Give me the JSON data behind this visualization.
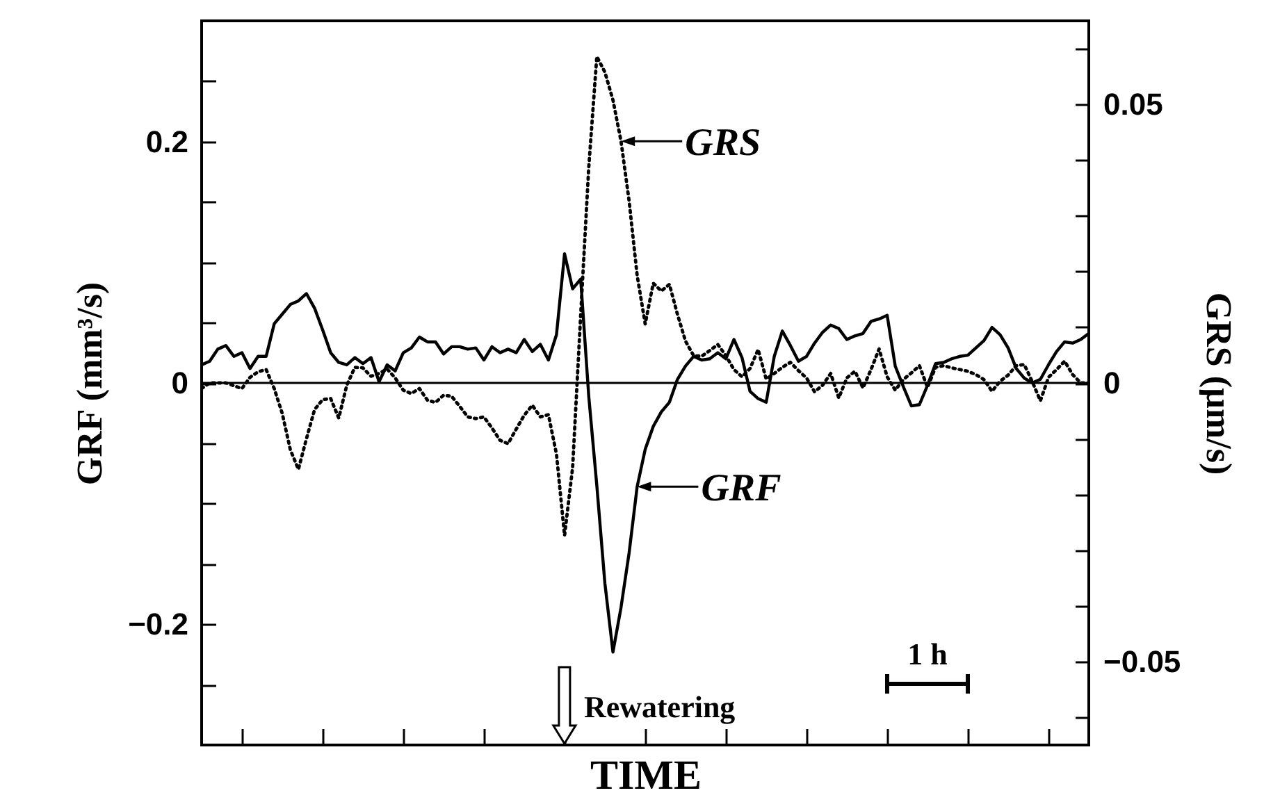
{
  "chart_data": {
    "type": "line",
    "xlabel": "TIME",
    "ylabel": "GRF (mm³/s)",
    "y2label": "GRS (µm/s)",
    "categories": [
      null,
      null,
      null,
      null,
      null,
      null,
      null,
      null,
      null,
      null,
      null,
      null,
      null,
      null,
      null,
      null,
      null,
      null,
      null,
      null,
      null,
      null,
      null,
      null,
      null,
      null,
      null,
      null,
      null,
      null,
      null,
      null,
      null,
      null,
      null,
      null,
      null,
      null,
      null,
      null,
      null,
      null,
      null,
      null,
      null,
      null,
      null,
      null,
      null,
      null,
      null,
      null,
      null,
      null,
      null,
      null,
      null,
      null,
      null,
      null,
      null,
      null,
      null,
      null,
      null,
      null,
      null,
      null,
      null,
      null,
      null,
      null,
      null,
      null,
      null,
      null,
      null,
      null,
      null,
      null,
      null,
      null,
      null,
      null,
      null,
      null,
      null,
      null,
      null,
      null,
      null,
      null,
      null,
      null,
      null,
      null,
      null,
      null,
      null,
      null,
      null,
      null,
      null,
      null,
      null,
      null,
      null,
      null,
      null,
      null,
      null
    ],
    "series": [
      {
        "color": "#000000",
        "line_style": "solid",
        "values": [
          0.015,
          0.018,
          0.028,
          0.031,
          0.022,
          0.025,
          0.012,
          0.022,
          0.022,
          0.049,
          0.057,
          0.065,
          0.068,
          0.074,
          0.062,
          0.044,
          0.025,
          0.017,
          0.015,
          0.021,
          0.016,
          0.021,
          0.001,
          0.015,
          0.01,
          0.025,
          0.029,
          0.038,
          0.034,
          0.034,
          0.024,
          0.03,
          0.03,
          0.028,
          0.029,
          0.019,
          0.03,
          0.025,
          0.028,
          0.025,
          0.036,
          0.026,
          0.032,
          0.019,
          0.04,
          0.107,
          0.078,
          0.086,
          -0.011,
          -0.085,
          -0.166,
          -0.223,
          -0.186,
          -0.141,
          -0.086,
          -0.055,
          -0.036,
          -0.024,
          -0.016,
          0.003,
          0.014,
          0.022,
          0.019,
          0.02,
          0.025,
          0.02,
          0.036,
          0.021,
          -0.007,
          -0.013,
          -0.016,
          0.022,
          0.043,
          0.031,
          0.018,
          0.022,
          0.033,
          0.042,
          0.048,
          0.045,
          0.036,
          0.039,
          0.041,
          0.051,
          0.053,
          0.056,
          0.014,
          -0.003,
          -0.019,
          -0.018,
          -0.002,
          0.016,
          0.017,
          0.02,
          0.022,
          0.023,
          0.029,
          0.035,
          0.046,
          0.04,
          0.029,
          0.012,
          0.004,
          0.0,
          0.003,
          0.015,
          0.026,
          0.034,
          0.033,
          0.036,
          0.041
        ]
      },
      {
        "color": "#000000",
        "line_style": "dotted",
        "axis": "y2",
        "values": [
          -0.001,
          0.0,
          0.0,
          0.0,
          -0.0005,
          -0.001,
          0.001,
          0.002,
          0.0024,
          -0.001,
          -0.0055,
          -0.012,
          -0.0155,
          -0.01,
          -0.0048,
          -0.003,
          -0.0028,
          -0.0063,
          -0.0004,
          0.0028,
          0.0027,
          0.0012,
          0.0017,
          0.0025,
          0.0009,
          -0.0013,
          -0.0019,
          -0.001,
          -0.0031,
          -0.0035,
          -0.0022,
          -0.0024,
          -0.0042,
          -0.0061,
          -0.0064,
          -0.0061,
          -0.0081,
          -0.0103,
          -0.0109,
          -0.0083,
          -0.0058,
          -0.004,
          -0.0061,
          -0.0057,
          -0.0128,
          -0.0274,
          -0.0152,
          0.0122,
          0.0387,
          0.0586,
          0.0558,
          0.0508,
          0.0434,
          0.0327,
          0.0193,
          0.0106,
          0.0179,
          0.0165,
          0.0177,
          0.0123,
          0.0075,
          0.0049,
          0.0048,
          0.0058,
          0.0069,
          0.0049,
          0.0024,
          0.0011,
          0.0026,
          0.006,
          0.0007,
          0.0017,
          0.0028,
          0.0037,
          0.0022,
          0.0009,
          -0.0016,
          -0.0004,
          0.0017,
          -0.0027,
          0.0009,
          0.0021,
          -0.0009,
          0.0024,
          0.0061,
          0.0011,
          -0.0013,
          0.0006,
          0.0018,
          0.0031,
          -0.0008,
          0.0028,
          0.0031,
          0.0027,
          0.0024,
          0.0021,
          0.0015,
          0.0006,
          -0.0015,
          0.0003,
          0.0014,
          0.0031,
          0.0033,
          0.0002,
          -0.0032,
          0.001,
          0.0024,
          0.0039,
          0.0015,
          0.0,
          0.0
        ]
      }
    ],
    "ylim": [
      -0.3,
      0.3
    ],
    "yticks": [
      {
        "value": -0.25,
        "label": null
      },
      {
        "value": -0.2,
        "label": "−0.2"
      },
      {
        "value": -0.15,
        "label": null
      },
      {
        "value": -0.1,
        "label": null
      },
      {
        "value": -0.05,
        "label": null
      },
      0,
      {
        "value": 0.05,
        "label": null
      },
      {
        "value": 0.1,
        "label": null
      },
      {
        "value": 0.15,
        "label": null
      },
      0.2,
      {
        "value": 0.25,
        "label": null
      }
    ],
    "y2lim": [
      -0.065,
      0.065
    ],
    "y2ticks": [
      {
        "value": -0.06,
        "label": null
      },
      {
        "value": -0.05,
        "label": "−0.05"
      },
      {
        "value": -0.04,
        "label": null
      },
      {
        "value": -0.03,
        "label": null
      },
      {
        "value": -0.02,
        "label": null
      },
      {
        "value": -0.01,
        "label": null
      },
      0,
      {
        "value": 0.01,
        "label": null
      },
      {
        "value": 0.02,
        "label": null
      },
      {
        "value": 0.03,
        "label": null
      },
      {
        "value": 0.04,
        "label": null
      },
      0.05,
      {
        "value": 0.06,
        "label": null
      }
    ],
    "ref_lines": [
      {
        "axis": "y",
        "value": 0,
        "color": "#000000"
      }
    ],
    "annotations": [
      "GRS",
      "GRF",
      "Rewatering",
      "1 h"
    ]
  }
}
